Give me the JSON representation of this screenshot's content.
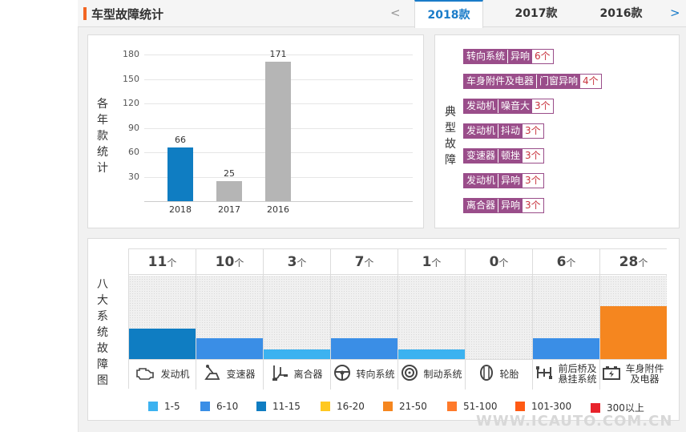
{
  "header": {
    "title": "车型故障统计",
    "prev": "<",
    "next": ">",
    "tabs": [
      {
        "label": "2018款",
        "active": true
      },
      {
        "label": "2017款",
        "active": false
      },
      {
        "label": "2016款",
        "active": false
      }
    ]
  },
  "year_chart": {
    "ylabel": "各年款统计",
    "yticks": [
      "180",
      "150",
      "120",
      "90",
      "60",
      "30"
    ]
  },
  "chart_data": {
    "type": "bar",
    "categories": [
      "2018",
      "2017",
      "2016"
    ],
    "values": [
      66,
      25,
      171
    ],
    "ylim": [
      0,
      180
    ],
    "colors": [
      "#0f7dc2",
      "#b5b5b5",
      "#b5b5b5"
    ],
    "grid": true
  },
  "typical": {
    "label": "典型故障",
    "items": [
      {
        "system": "转向系统",
        "type": "异响",
        "count": "6个"
      },
      {
        "system": "车身附件及电器",
        "type": "门窗异响",
        "count": "4个"
      },
      {
        "system": "发动机",
        "type": "噪音大",
        "count": "3个"
      },
      {
        "system": "发动机",
        "type": "抖动",
        "count": "3个"
      },
      {
        "system": "变速器",
        "type": "顿挫",
        "count": "3个"
      },
      {
        "system": "发动机",
        "type": "异响",
        "count": "3个"
      },
      {
        "system": "离合器",
        "type": "异响",
        "count": "3个"
      }
    ]
  },
  "systems": {
    "label": "八大系统故障图",
    "unit": "个",
    "items": [
      {
        "name": "发动机",
        "count": "11",
        "level": 0.37,
        "color": "#0f7dc2",
        "icon": "engine-icon"
      },
      {
        "name": "变速器",
        "count": "10",
        "level": 0.25,
        "color": "#3a8ee6",
        "icon": "gearshift-icon"
      },
      {
        "name": "离合器",
        "count": "3",
        "level": 0.12,
        "color": "#3cb2f0",
        "icon": "clutch-icon"
      },
      {
        "name": "转向系统",
        "count": "7",
        "level": 0.25,
        "color": "#3a8ee6",
        "icon": "steering-wheel-icon"
      },
      {
        "name": "制动系统",
        "count": "1",
        "level": 0.12,
        "color": "#3cb2f0",
        "icon": "brake-disc-icon"
      },
      {
        "name": "轮胎",
        "count": "0",
        "level": 0,
        "color": "#3cb2f0",
        "icon": "tire-icon"
      },
      {
        "name": "前后桥及悬挂系统",
        "name_lines": [
          "前后桥及",
          "悬挂系统"
        ],
        "count": "6",
        "level": 0.25,
        "color": "#3a8ee6",
        "icon": "suspension-icon"
      },
      {
        "name": "车身附件及电器",
        "name_lines": [
          "车身附件",
          "及电器"
        ],
        "count": "28",
        "level": 0.63,
        "color": "#f5861f",
        "icon": "battery-icon"
      }
    ]
  },
  "legend": [
    {
      "label": "1-5",
      "color": "#3cb2f0"
    },
    {
      "label": "6-10",
      "color": "#3a8ee6"
    },
    {
      "label": "11-15",
      "color": "#0f7dc2"
    },
    {
      "label": "16-20",
      "color": "#ffc820"
    },
    {
      "label": "21-50",
      "color": "#f5861f"
    },
    {
      "label": "51-100",
      "color": "#ff7a2a"
    },
    {
      "label": "101-300",
      "color": "#ff5a14"
    },
    {
      "label": "300以上",
      "color": "#e8232b"
    }
  ],
  "watermark": "WWW.ICAUTO.COM.CN"
}
